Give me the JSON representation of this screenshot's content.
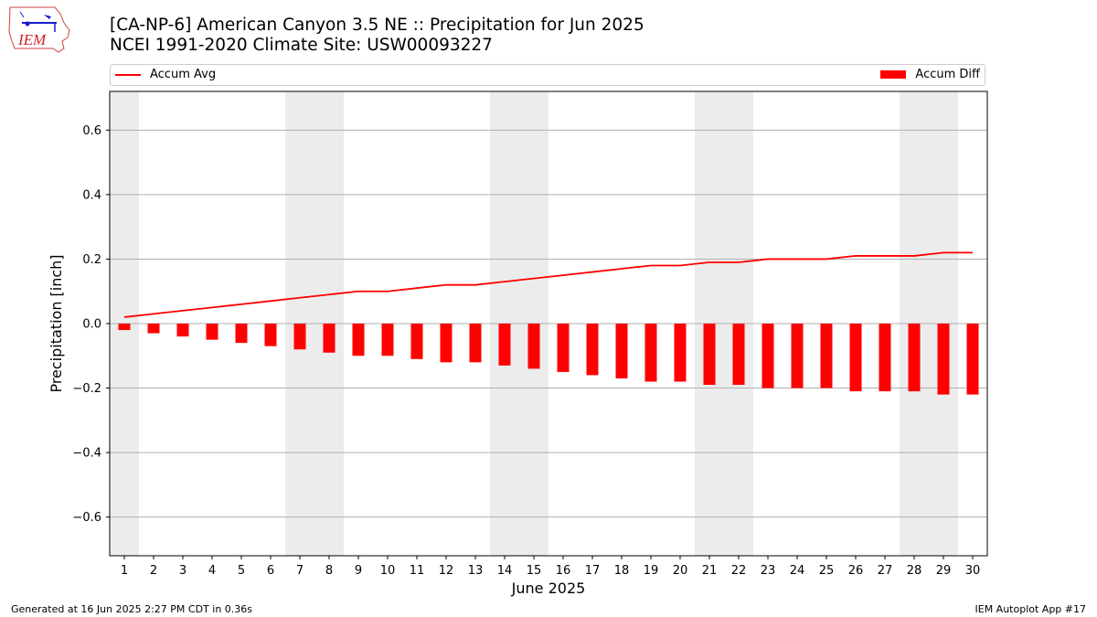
{
  "title_line1": "[CA-NP-6] American Canyon 3.5 NE :: Precipitation for Jun 2025",
  "title_line2": "NCEI 1991-2020 Climate Site: USW00093227",
  "logo_text": "IEM",
  "footer_left": "Generated at 16 Jun 2025 2:27 PM CDT in 0.36s",
  "footer_right": "IEM Autoplot App #17",
  "colors": {
    "series": "#ff0000",
    "weekend_band": "#ececec",
    "grid": "#b0b0b0"
  },
  "chart_data": {
    "type": "bar",
    "xlabel": "June 2025",
    "ylabel": "Precipitation [inch]",
    "ylim": [
      -0.72,
      0.72
    ],
    "yticks": [
      0.6,
      0.4,
      0.2,
      0.0,
      -0.2,
      -0.4,
      -0.6
    ],
    "ytick_labels": [
      "0.6",
      "0.4",
      "0.2",
      "0.0",
      "−0.2",
      "−0.4",
      "−0.6"
    ],
    "grid": "horizontal",
    "legend": "top",
    "x": [
      1,
      2,
      3,
      4,
      5,
      6,
      7,
      8,
      9,
      10,
      11,
      12,
      13,
      14,
      15,
      16,
      17,
      18,
      19,
      20,
      21,
      22,
      23,
      24,
      25,
      26,
      27,
      28,
      29,
      30
    ],
    "weekend_days": [
      1,
      7,
      8,
      14,
      15,
      21,
      22,
      28,
      29
    ],
    "series": [
      {
        "name": "Accum Avg",
        "type": "line",
        "values": [
          0.02,
          0.03,
          0.04,
          0.05,
          0.06,
          0.07,
          0.08,
          0.09,
          0.1,
          0.1,
          0.11,
          0.12,
          0.12,
          0.13,
          0.14,
          0.15,
          0.16,
          0.17,
          0.18,
          0.18,
          0.19,
          0.19,
          0.2,
          0.2,
          0.2,
          0.21,
          0.21,
          0.21,
          0.22,
          0.22
        ]
      },
      {
        "name": "Accum Diff",
        "type": "bar",
        "values": [
          -0.02,
          -0.03,
          -0.04,
          -0.05,
          -0.06,
          -0.07,
          -0.08,
          -0.09,
          -0.1,
          -0.1,
          -0.11,
          -0.12,
          -0.12,
          -0.13,
          -0.14,
          -0.15,
          -0.16,
          -0.17,
          -0.18,
          -0.18,
          -0.19,
          -0.19,
          -0.2,
          -0.2,
          -0.2,
          -0.21,
          -0.21,
          -0.21,
          -0.22,
          -0.22
        ]
      }
    ]
  }
}
